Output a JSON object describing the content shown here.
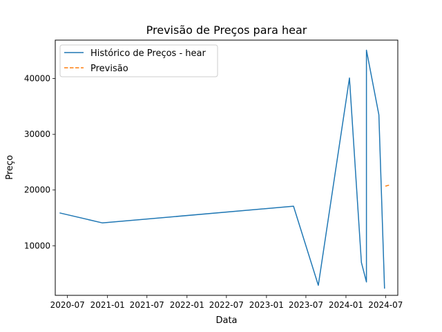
{
  "chart_data": {
    "type": "line",
    "title": "Previsão de Preços para hear",
    "xlabel": "Data",
    "ylabel": "Preço",
    "x_ticks": [
      "2020-07",
      "2021-01",
      "2021-07",
      "2022-01",
      "2022-07",
      "2023-01",
      "2023-07",
      "2024-01",
      "2024-07"
    ],
    "y_ticks": [
      10000,
      20000,
      30000,
      40000
    ],
    "xlim": [
      "2020-05-06",
      "2024-08-26"
    ],
    "ylim": [
      1100,
      46900
    ],
    "grid": false,
    "legend_position": "top-left",
    "series": [
      {
        "name": "Histórico de Preços - hear",
        "color": "#1f77b4",
        "style": "solid",
        "points": [
          {
            "x": "2020-05-26",
            "y": 15900
          },
          {
            "x": "2020-12-09",
            "y": 14100
          },
          {
            "x": "2023-05-05",
            "y": 17100
          },
          {
            "x": "2023-08-27",
            "y": 2900
          },
          {
            "x": "2024-01-17",
            "y": 40100
          },
          {
            "x": "2024-03-12",
            "y": 7000
          },
          {
            "x": "2024-04-04",
            "y": 3500
          },
          {
            "x": "2024-04-04",
            "y": 45100
          },
          {
            "x": "2024-05-31",
            "y": 33500
          },
          {
            "x": "2024-06-26",
            "y": 2300
          }
        ]
      },
      {
        "name": "Previsão",
        "color": "#ff7f0e",
        "style": "dashed",
        "points": [
          {
            "x": "2024-06-30",
            "y": 20700
          },
          {
            "x": "2024-07-19",
            "y": 20900
          }
        ]
      }
    ]
  }
}
